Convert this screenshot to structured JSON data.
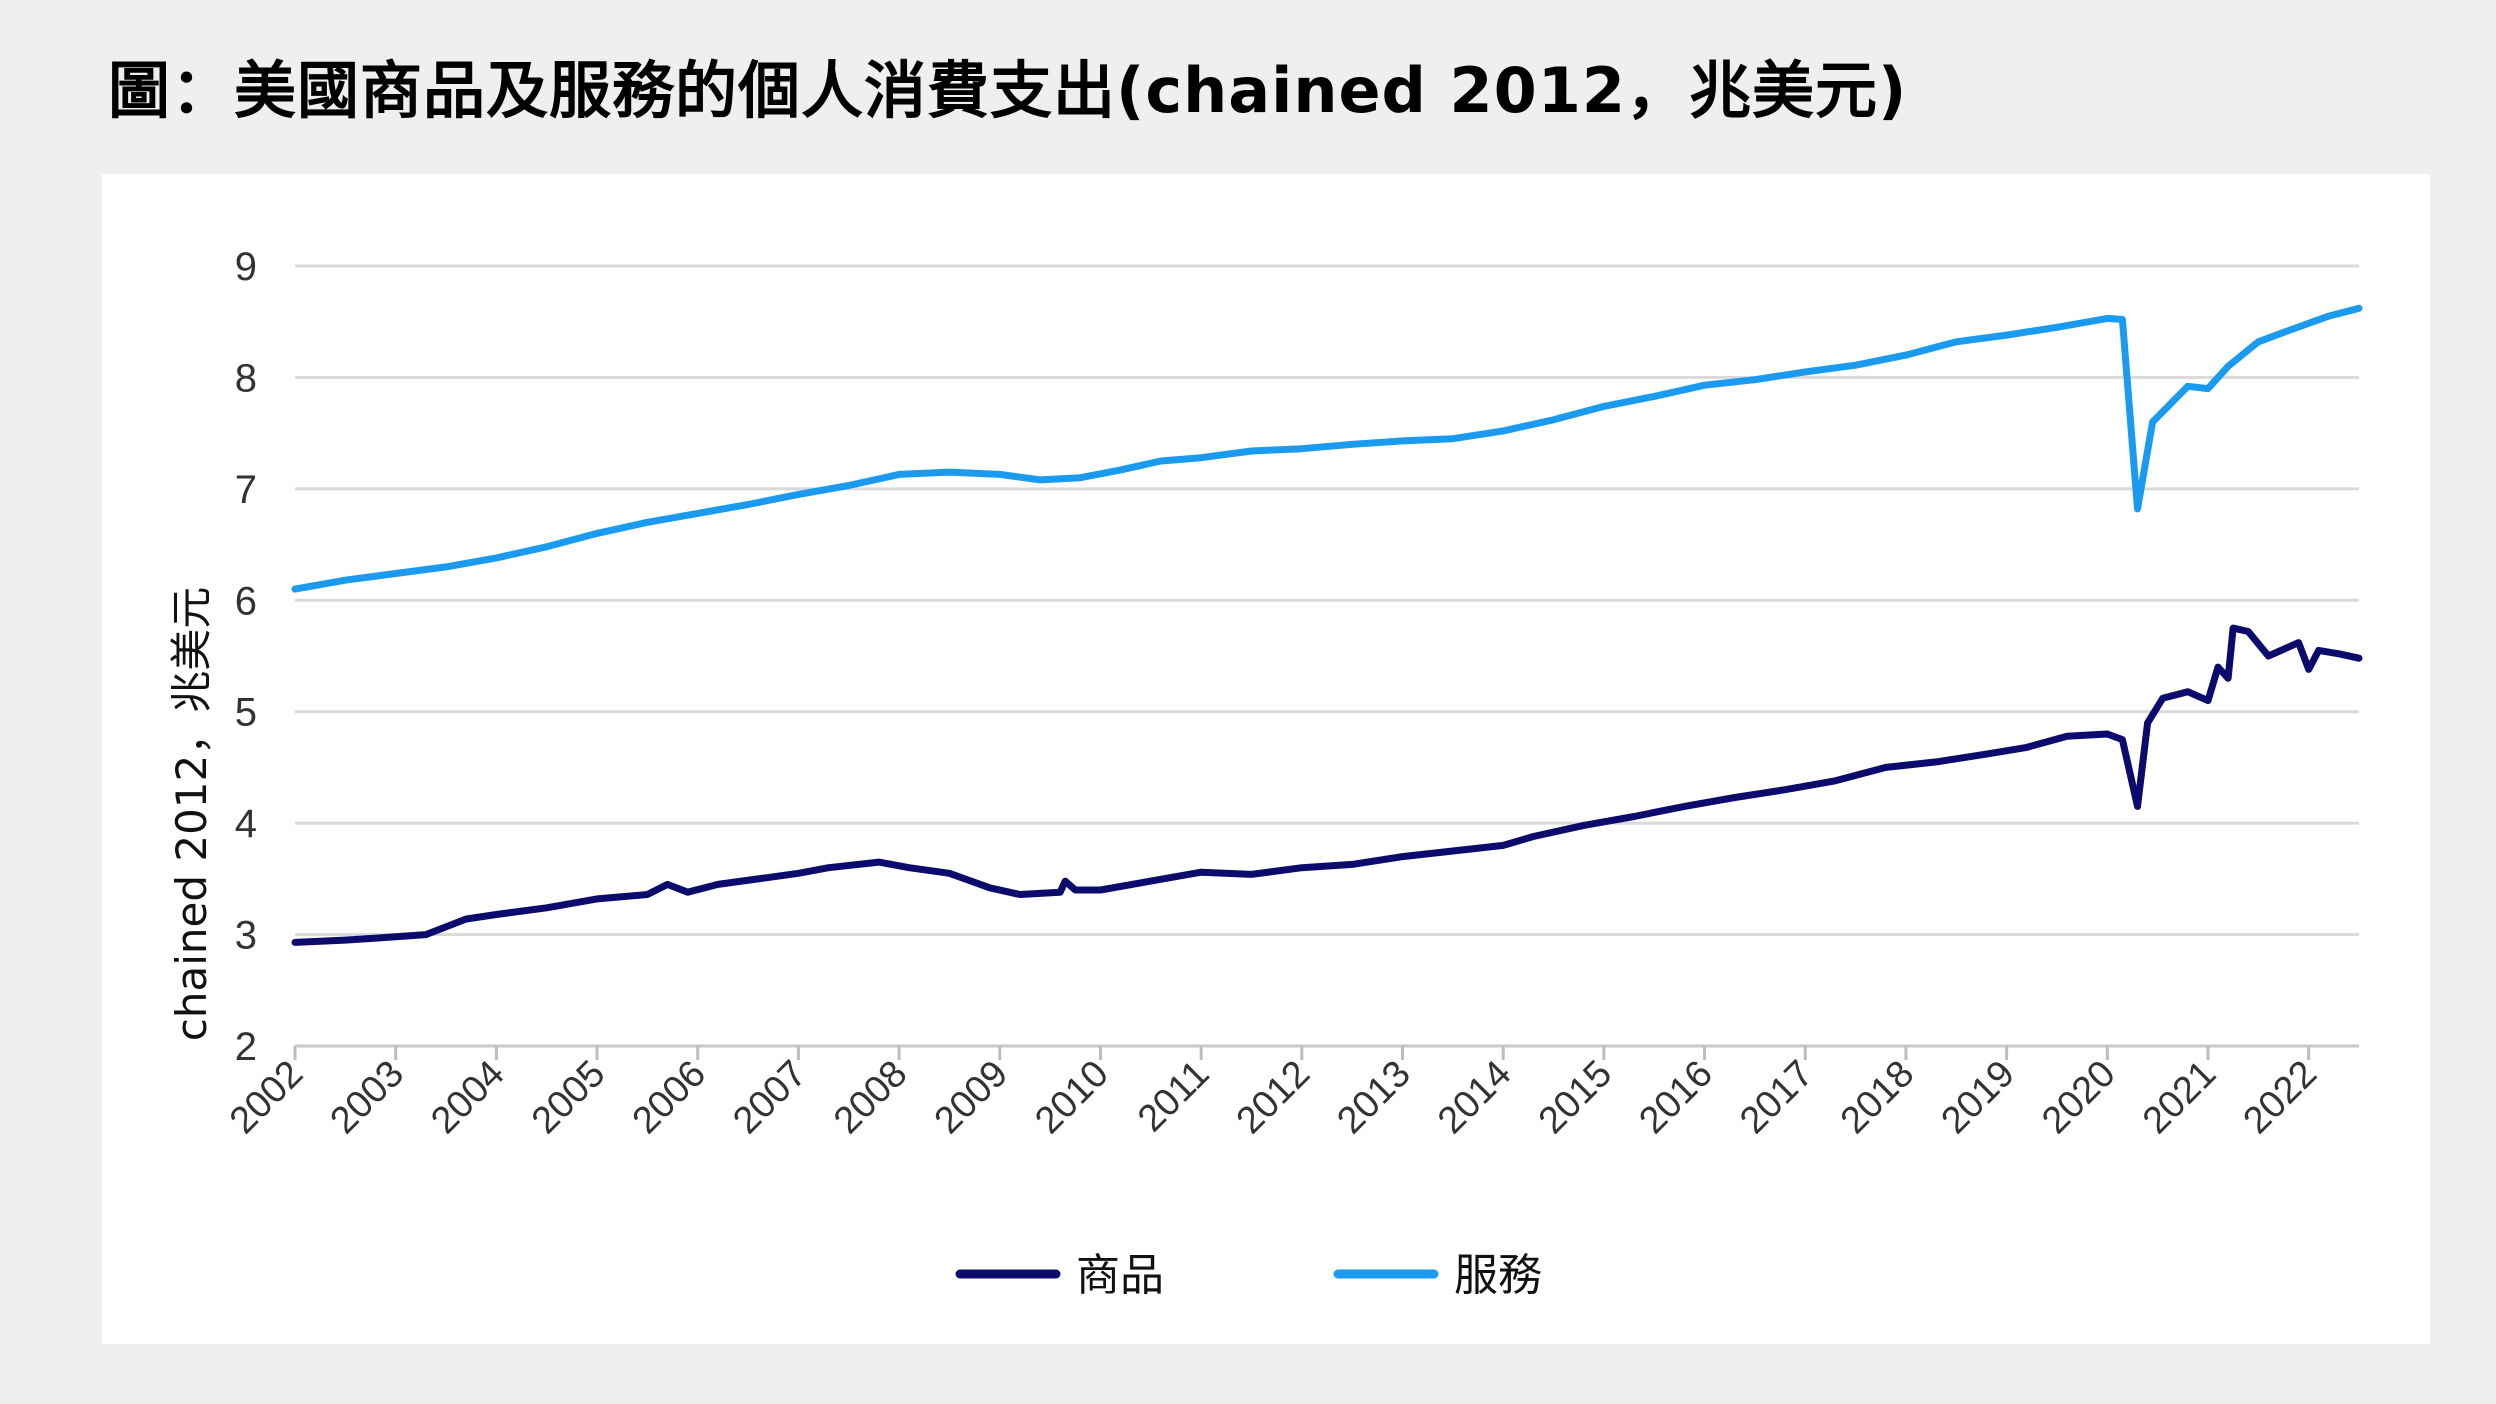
{
  "page": {
    "title": "圖：美國商品及服務的個人消費支出(chained 2012，兆美元)"
  },
  "chart_data": {
    "type": "line",
    "title": "圖：美國商品及服務的個人消費支出(chained 2012，兆美元)",
    "xlabel": "",
    "ylabel": "chained 2012，兆美元",
    "ylim": [
      2,
      9
    ],
    "xlim": [
      2002,
      2022.5
    ],
    "yticks": [
      "2",
      "3",
      "4",
      "5",
      "6",
      "7",
      "8",
      "9"
    ],
    "xticks": [
      "2002",
      "2003",
      "2004",
      "2005",
      "2006",
      "2007",
      "2008",
      "2009",
      "2010",
      "2011",
      "2012",
      "2013",
      "2014",
      "2015",
      "2016",
      "2017",
      "2018",
      "2019",
      "2020",
      "2021",
      "2022"
    ],
    "grid": true,
    "legend_position": "bottom",
    "series": [
      {
        "name": "商品",
        "color": "#0b0b6e",
        "points": [
          [
            2002.0,
            2.93
          ],
          [
            2002.5,
            2.95
          ],
          [
            2003.0,
            2.98
          ],
          [
            2003.3,
            3.0
          ],
          [
            2003.7,
            3.14
          ],
          [
            2004.0,
            3.18
          ],
          [
            2004.5,
            3.24
          ],
          [
            2005.0,
            3.32
          ],
          [
            2005.5,
            3.36
          ],
          [
            2005.7,
            3.45
          ],
          [
            2005.9,
            3.38
          ],
          [
            2006.2,
            3.45
          ],
          [
            2006.6,
            3.5
          ],
          [
            2007.0,
            3.55
          ],
          [
            2007.3,
            3.6
          ],
          [
            2007.8,
            3.65
          ],
          [
            2008.1,
            3.6
          ],
          [
            2008.5,
            3.55
          ],
          [
            2008.9,
            3.42
          ],
          [
            2009.2,
            3.36
          ],
          [
            2009.6,
            3.38
          ],
          [
            2009.65,
            3.48
          ],
          [
            2009.75,
            3.4
          ],
          [
            2010.0,
            3.4
          ],
          [
            2010.5,
            3.48
          ],
          [
            2011.0,
            3.56
          ],
          [
            2011.5,
            3.54
          ],
          [
            2012.0,
            3.6
          ],
          [
            2012.5,
            3.63
          ],
          [
            2013.0,
            3.7
          ],
          [
            2013.5,
            3.75
          ],
          [
            2014.0,
            3.8
          ],
          [
            2014.3,
            3.88
          ],
          [
            2014.8,
            3.98
          ],
          [
            2015.3,
            4.06
          ],
          [
            2015.8,
            4.15
          ],
          [
            2016.3,
            4.23
          ],
          [
            2016.8,
            4.3
          ],
          [
            2017.3,
            4.38
          ],
          [
            2017.8,
            4.5
          ],
          [
            2018.3,
            4.55
          ],
          [
            2018.8,
            4.62
          ],
          [
            2019.2,
            4.68
          ],
          [
            2019.6,
            4.78
          ],
          [
            2020.0,
            4.8
          ],
          [
            2020.15,
            4.75
          ],
          [
            2020.3,
            4.15
          ],
          [
            2020.4,
            4.9
          ],
          [
            2020.55,
            5.12
          ],
          [
            2020.8,
            5.18
          ],
          [
            2021.0,
            5.1
          ],
          [
            2021.1,
            5.4
          ],
          [
            2021.2,
            5.3
          ],
          [
            2021.25,
            5.75
          ],
          [
            2021.4,
            5.72
          ],
          [
            2021.6,
            5.5
          ],
          [
            2021.8,
            5.58
          ],
          [
            2021.9,
            5.62
          ],
          [
            2022.0,
            5.38
          ],
          [
            2022.1,
            5.55
          ],
          [
            2022.3,
            5.52
          ],
          [
            2022.5,
            5.48
          ]
        ]
      },
      {
        "name": "服務",
        "color": "#1a9bef",
        "points": [
          [
            2002.0,
            6.1
          ],
          [
            2002.5,
            6.18
          ],
          [
            2003.0,
            6.24
          ],
          [
            2003.5,
            6.3
          ],
          [
            2004.0,
            6.38
          ],
          [
            2004.5,
            6.48
          ],
          [
            2005.0,
            6.6
          ],
          [
            2005.5,
            6.7
          ],
          [
            2006.0,
            6.78
          ],
          [
            2006.5,
            6.86
          ],
          [
            2007.0,
            6.95
          ],
          [
            2007.5,
            7.03
          ],
          [
            2008.0,
            7.13
          ],
          [
            2008.5,
            7.15
          ],
          [
            2009.0,
            7.13
          ],
          [
            2009.4,
            7.08
          ],
          [
            2009.8,
            7.1
          ],
          [
            2010.2,
            7.17
          ],
          [
            2010.6,
            7.25
          ],
          [
            2011.0,
            7.28
          ],
          [
            2011.5,
            7.34
          ],
          [
            2012.0,
            7.36
          ],
          [
            2012.5,
            7.4
          ],
          [
            2013.0,
            7.43
          ],
          [
            2013.5,
            7.45
          ],
          [
            2014.0,
            7.52
          ],
          [
            2014.5,
            7.62
          ],
          [
            2015.0,
            7.74
          ],
          [
            2015.5,
            7.83
          ],
          [
            2016.0,
            7.93
          ],
          [
            2016.5,
            7.98
          ],
          [
            2017.0,
            8.05
          ],
          [
            2017.5,
            8.11
          ],
          [
            2018.0,
            8.2
          ],
          [
            2018.5,
            8.32
          ],
          [
            2019.0,
            8.38
          ],
          [
            2019.5,
            8.45
          ],
          [
            2020.0,
            8.53
          ],
          [
            2020.15,
            8.52
          ],
          [
            2020.3,
            6.82
          ],
          [
            2020.45,
            7.6
          ],
          [
            2020.8,
            7.92
          ],
          [
            2021.0,
            7.9
          ],
          [
            2021.2,
            8.1
          ],
          [
            2021.5,
            8.32
          ],
          [
            2021.8,
            8.42
          ],
          [
            2022.2,
            8.55
          ],
          [
            2022.5,
            8.62
          ]
        ]
      }
    ]
  }
}
